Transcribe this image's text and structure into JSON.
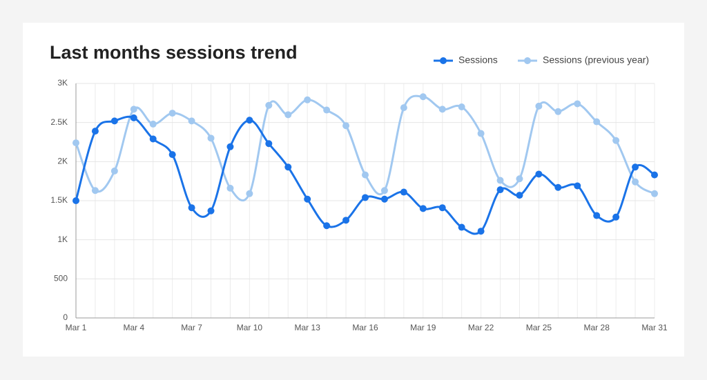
{
  "chart_data": {
    "type": "line",
    "title": "Last months sessions trend",
    "categories": [
      "Mar 1",
      null,
      null,
      "Mar 4",
      null,
      null,
      "Mar 7",
      null,
      null,
      "Mar 10",
      null,
      null,
      "Mar 13",
      null,
      null,
      "Mar 16",
      null,
      null,
      "Mar 19",
      null,
      null,
      "Mar 22",
      null,
      null,
      "Mar 25",
      null,
      null,
      "Mar 28",
      null,
      null,
      "Mar 31"
    ],
    "series": [
      {
        "name": "Sessions",
        "color": "#1a73e8",
        "values": [
          1500,
          2390,
          2520,
          2560,
          2290,
          2090,
          1410,
          1370,
          2190,
          2530,
          2230,
          1930,
          1520,
          1180,
          1250,
          1540,
          1520,
          1610,
          1400,
          1410,
          1160,
          1110,
          1640,
          1570,
          1840,
          1670,
          1690,
          1310,
          1290,
          1930,
          1830
        ]
      },
      {
        "name": "Sessions (previous year)",
        "color": "#a1c8f0",
        "values": [
          2240,
          1630,
          1880,
          2670,
          2480,
          2620,
          2520,
          2300,
          1660,
          1590,
          2720,
          2600,
          2790,
          2660,
          2460,
          1830,
          1630,
          2690,
          2830,
          2670,
          2700,
          2360,
          1760,
          1780,
          2710,
          2640,
          2740,
          2510,
          2270,
          1740,
          1590
        ]
      }
    ],
    "ylim": [
      0,
      3000
    ],
    "yticks": [
      0,
      500,
      {
        "value": 1000,
        "label": "1K"
      },
      {
        "value": 1500,
        "label": "1.5K"
      },
      {
        "value": 2000,
        "label": "2K"
      },
      {
        "value": 2500,
        "label": "2.5K"
      },
      {
        "value": 3000,
        "label": "3K"
      }
    ],
    "grid": true,
    "legend": "top-right"
  }
}
